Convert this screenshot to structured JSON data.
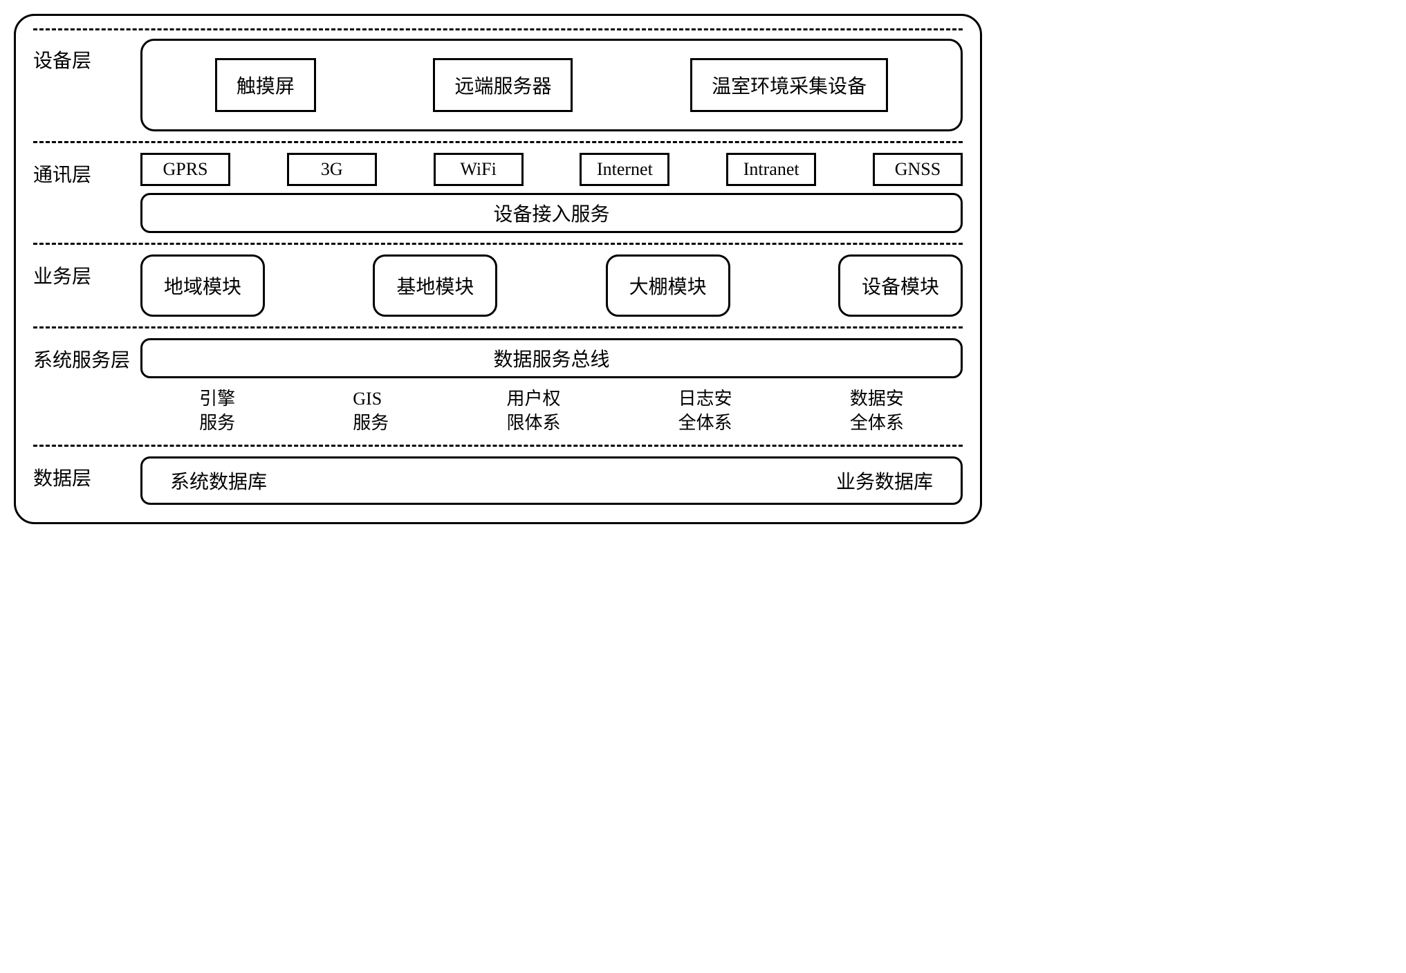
{
  "diagram": {
    "type": "layered-architecture",
    "border_color": "#000000",
    "background_color": "#ffffff",
    "text_color": "#000000",
    "font_family": "SimSun",
    "title_fontsize": 28,
    "box_fontsize": 28,
    "small_box_fontsize": 26,
    "border_width": 3,
    "border_radius_outer": 30,
    "border_radius_rounded_box": 18,
    "divider_style": "dashed"
  },
  "layers": {
    "device": {
      "label": "设备层",
      "items": [
        "触摸屏",
        "远端服务器",
        "温室环境采集设备"
      ]
    },
    "comm": {
      "label": "通讯层",
      "protocols": [
        "GPRS",
        "3G",
        "WiFi",
        "Internet",
        "Intranet",
        "GNSS"
      ],
      "access_service": "设备接入服务"
    },
    "business": {
      "label": "业务层",
      "modules": [
        "地域模块",
        "基地模块",
        "大棚模块",
        "设备模块"
      ]
    },
    "system_service": {
      "label": "系统服务层",
      "bus": "数据服务总线",
      "services": [
        {
          "line1": "引擎",
          "line2": "服务"
        },
        {
          "line1": "GIS",
          "line2": "服务"
        },
        {
          "line1": "用户权",
          "line2": "限体系"
        },
        {
          "line1": "日志安",
          "line2": "全体系"
        },
        {
          "line1": "数据安",
          "line2": "全体系"
        }
      ]
    },
    "data": {
      "label": "数据层",
      "databases": [
        "系统数据库",
        "业务数据库"
      ]
    }
  }
}
